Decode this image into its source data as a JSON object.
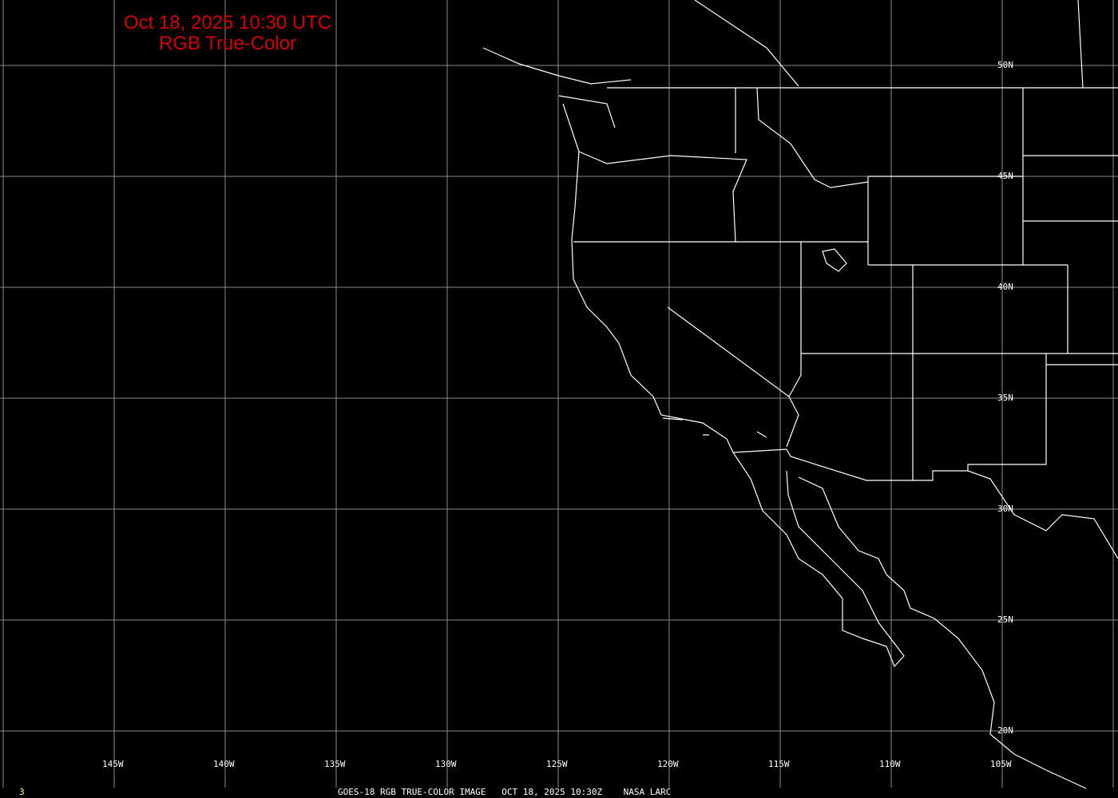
{
  "title": {
    "line1": "Oct 18, 2025 10:30 UTC",
    "line2": "RGB True-Color"
  },
  "footer": {
    "frame_number": "3",
    "caption": "GOES-18 RGB TRUE-COLOR IMAGE   OCT 18, 2025 10:30Z    NASA LARC"
  },
  "grid": {
    "longitudes": [
      "145W",
      "140W",
      "135W",
      "130W",
      "125W",
      "120W",
      "115W",
      "110W",
      "105W"
    ],
    "latitudes": [
      "50N",
      "45N",
      "40N",
      "35N",
      "30N",
      "25N",
      "20N"
    ]
  },
  "colors": {
    "background": "#000000",
    "grid": "#8c8c8c",
    "boundaries": "#ffffff",
    "title": "#d40000",
    "frame_number": "#ffff66"
  }
}
